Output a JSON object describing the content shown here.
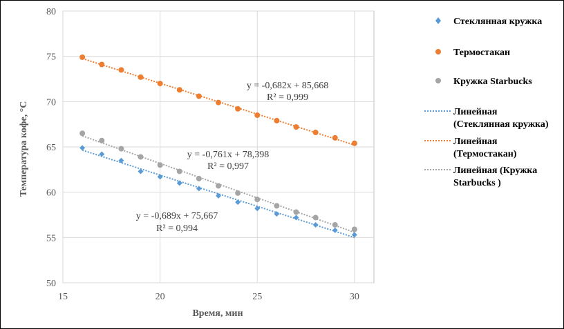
{
  "chart_data": {
    "type": "scatter",
    "xlabel": "Время, мин",
    "ylabel": "Температура кофе, °С",
    "xlim": [
      15,
      31
    ],
    "ylim": [
      50,
      80
    ],
    "xticks": [
      "15",
      "20",
      "25",
      "30"
    ],
    "yticks": [
      "50",
      "55",
      "60",
      "65",
      "70",
      "75",
      "80"
    ],
    "series": [
      {
        "name": "Стеклянная кружка",
        "color": "#5B9BD5",
        "marker": "diamond",
        "x": [
          16,
          17,
          18,
          19,
          20,
          21,
          22,
          23,
          24,
          25,
          26,
          27,
          28,
          29,
          30
        ],
        "y": [
          64.9,
          64.2,
          63.5,
          62.3,
          61.7,
          61.0,
          60.4,
          59.6,
          58.9,
          58.2,
          57.6,
          57.2,
          56.4,
          55.8,
          55.3
        ]
      },
      {
        "name": "Термостакан",
        "color": "#ED7D31",
        "marker": "circle",
        "x": [
          16,
          17,
          18,
          19,
          20,
          21,
          22,
          23,
          24,
          25,
          26,
          27,
          28,
          29,
          30
        ],
        "y": [
          74.9,
          74.1,
          73.5,
          72.7,
          72.0,
          71.3,
          70.6,
          69.9,
          69.2,
          68.5,
          67.9,
          67.2,
          66.6,
          66.0,
          65.4
        ]
      },
      {
        "name": "Кружка Starbucks",
        "color": "#A5A5A5",
        "marker": "circle",
        "x": [
          16,
          17,
          18,
          19,
          20,
          21,
          22,
          23,
          24,
          25,
          26,
          27,
          28,
          29,
          30
        ],
        "y": [
          66.5,
          65.7,
          64.8,
          63.9,
          63.0,
          62.3,
          61.5,
          60.7,
          59.9,
          59.2,
          58.5,
          57.8,
          57.2,
          56.4,
          55.9
        ]
      }
    ],
    "trendlines": [
      {
        "name": "Линейная (Стеклянная кружка)",
        "legend_lines": [
          "Линейная",
          "(Стеклянная кружка)"
        ],
        "color": "#5B9BD5",
        "slope": -0.689,
        "intercept": 75.667,
        "equation": "y = -0,689x + 75,667",
        "r2": "R² = 0,994"
      },
      {
        "name": "Линейная (Термостакан)",
        "legend_lines": [
          "Линейная",
          "(Термостакан)"
        ],
        "color": "#ED7D31",
        "slope": -0.682,
        "intercept": 85.668,
        "equation": "y = -0,682x + 85,668",
        "r2": "R² = 0,999"
      },
      {
        "name": "Линейная (Кружка Starbucks )",
        "legend_lines": [
          "Линейная (Кружка",
          "Starbucks  )"
        ],
        "color": "#A5A5A5",
        "slope": -0.761,
        "intercept": 78.398,
        "equation": "y = -0,761x + 78,398",
        "r2": "R² = 0,997"
      }
    ]
  }
}
